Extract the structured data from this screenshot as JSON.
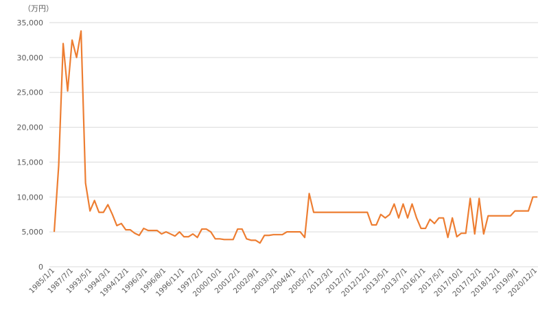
{
  "chart_data": {
    "type": "line",
    "unit_label": "（万円）",
    "ylim": [
      0,
      35000
    ],
    "y_ticks": [
      0,
      5000,
      10000,
      15000,
      20000,
      25000,
      30000,
      35000
    ],
    "y_tick_labels": [
      "0",
      "5,000",
      "10,000",
      "15,000",
      "20,000",
      "25,000",
      "30,000",
      "35,000"
    ],
    "x_tick_labels": [
      "1985/1/1",
      "1987/7/1",
      "1993/5/1",
      "1994/3/1",
      "1994/12/1",
      "1996/3/1",
      "1996/8/1",
      "1996/11/1",
      "1997/2/1",
      "2000/10/1",
      "2001/2/1",
      "2002/9/1",
      "2003/3/1",
      "2004/4/1",
      "2005/7/1",
      "2012/3/1",
      "2012/7/1",
      "2012/12/1",
      "2013/5/1",
      "2013/7/1",
      "2016/1/1",
      "2017/5/1",
      "2017/10/1",
      "2017/12/1",
      "2018/12/1",
      "2019/9/1",
      "2020/12/1"
    ],
    "grid": true,
    "legend": "none",
    "line_color": "#ED7D31",
    "grid_color": "#D9D9D9",
    "values": [
      5000,
      14500,
      32000,
      25200,
      32500,
      30000,
      33800,
      12000,
      8000,
      9500,
      7800,
      7800,
      8900,
      7500,
      5900,
      6200,
      5300,
      5300,
      4800,
      4500,
      5500,
      5200,
      5200,
      5200,
      4700,
      5000,
      4700,
      4400,
      5000,
      4300,
      4300,
      4700,
      4200,
      5400,
      5400,
      5000,
      4000,
      4000,
      3900,
      3900,
      3900,
      5400,
      5400,
      4000,
      3800,
      3800,
      3400,
      4500,
      4500,
      4600,
      4600,
      4600,
      5000,
      5000,
      5000,
      5000,
      4200,
      10500,
      7800,
      7800,
      7800,
      7800,
      7800,
      7800,
      7800,
      7800,
      7800,
      7800,
      7800,
      7800,
      7800,
      6000,
      6000,
      7500,
      7000,
      7500,
      9000,
      7000,
      9000,
      7000,
      9000,
      7000,
      5500,
      5500,
      6800,
      6200,
      7000,
      7000,
      4200,
      7000,
      4300,
      4800,
      4800,
      9800,
      4700,
      9800,
      4700,
      7300,
      7300,
      7300,
      7300,
      7300,
      7300,
      8000,
      8000,
      8000,
      8000,
      10000,
      10000
    ]
  }
}
